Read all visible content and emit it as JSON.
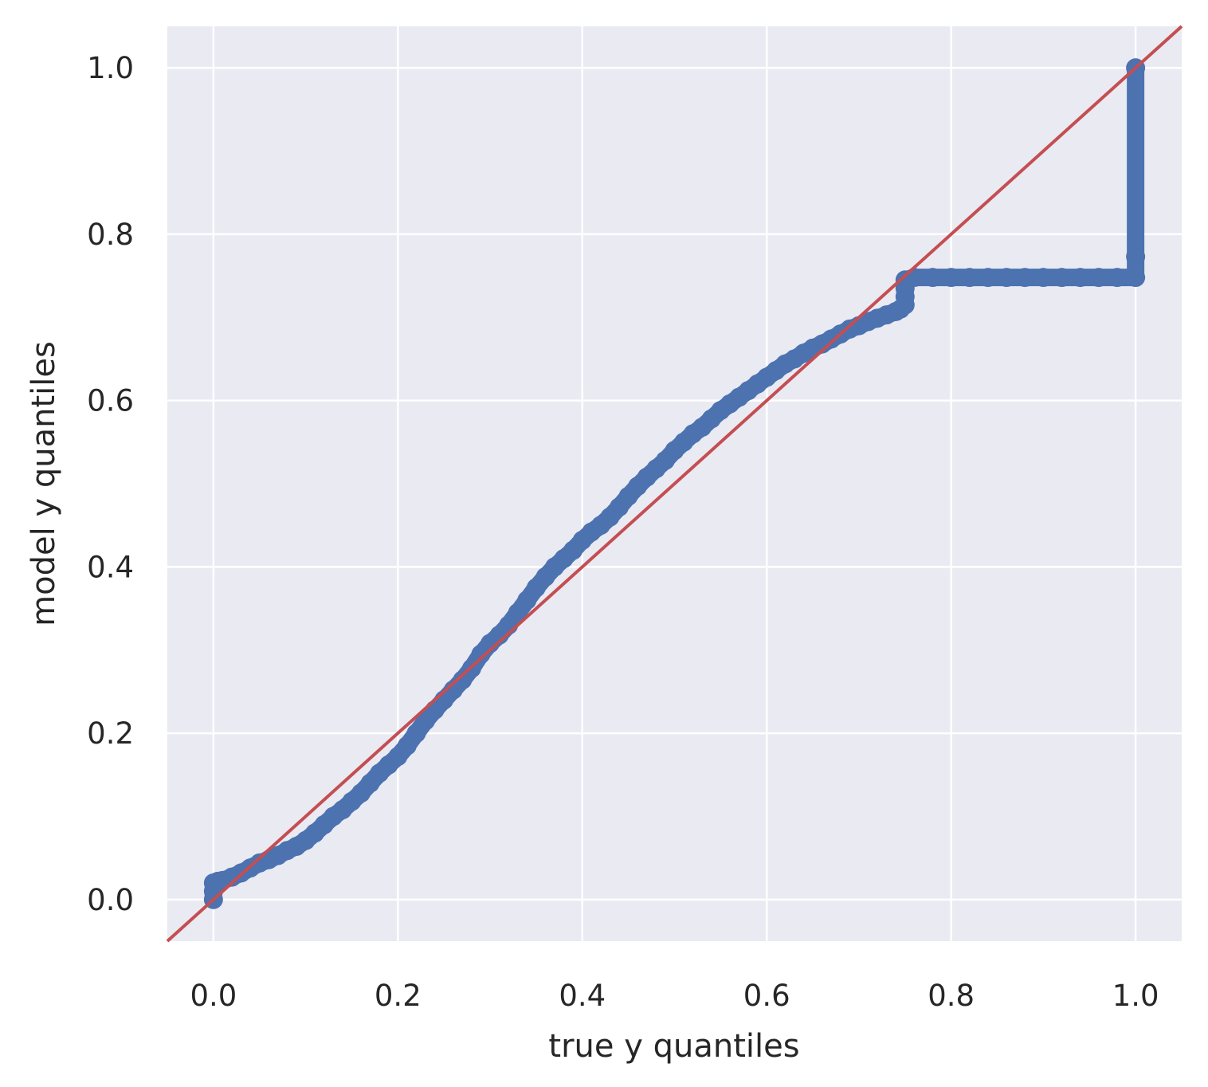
{
  "chart_data": {
    "type": "scatter",
    "title": "",
    "xlabel": "true y quantiles",
    "ylabel": "model y quantiles",
    "xlim": [
      -0.05,
      1.05
    ],
    "ylim": [
      -0.05,
      1.05
    ],
    "xticks": [
      0.0,
      0.2,
      0.4,
      0.6,
      0.8,
      1.0
    ],
    "yticks": [
      0.0,
      0.2,
      0.4,
      0.6,
      0.8,
      1.0
    ],
    "xtick_labels": [
      "0.0",
      "0.2",
      "0.4",
      "0.6",
      "0.8",
      "1.0"
    ],
    "ytick_labels": [
      "0.0",
      "0.2",
      "0.4",
      "0.6",
      "0.8",
      "1.0"
    ],
    "grid": true,
    "series": [
      {
        "kind": "scatter",
        "color": "#4c72b0",
        "points": [
          [
            0.0,
            0.0
          ],
          [
            0.0,
            0.01
          ],
          [
            0.0,
            0.02
          ],
          [
            0.005,
            0.022
          ],
          [
            0.01,
            0.023
          ],
          [
            0.02,
            0.027
          ],
          [
            0.03,
            0.032
          ],
          [
            0.04,
            0.038
          ],
          [
            0.05,
            0.044
          ],
          [
            0.06,
            0.048
          ],
          [
            0.07,
            0.053
          ],
          [
            0.08,
            0.059
          ],
          [
            0.09,
            0.064
          ],
          [
            0.1,
            0.071
          ],
          [
            0.11,
            0.08
          ],
          [
            0.12,
            0.09
          ],
          [
            0.13,
            0.1
          ],
          [
            0.14,
            0.108
          ],
          [
            0.15,
            0.118
          ],
          [
            0.16,
            0.128
          ],
          [
            0.17,
            0.14
          ],
          [
            0.18,
            0.152
          ],
          [
            0.19,
            0.162
          ],
          [
            0.2,
            0.172
          ],
          [
            0.21,
            0.185
          ],
          [
            0.22,
            0.2
          ],
          [
            0.23,
            0.215
          ],
          [
            0.24,
            0.228
          ],
          [
            0.25,
            0.24
          ],
          [
            0.26,
            0.252
          ],
          [
            0.27,
            0.264
          ],
          [
            0.28,
            0.278
          ],
          [
            0.29,
            0.295
          ],
          [
            0.3,
            0.308
          ],
          [
            0.31,
            0.318
          ],
          [
            0.32,
            0.33
          ],
          [
            0.33,
            0.345
          ],
          [
            0.34,
            0.36
          ],
          [
            0.35,
            0.375
          ],
          [
            0.36,
            0.388
          ],
          [
            0.37,
            0.4
          ],
          [
            0.38,
            0.41
          ],
          [
            0.39,
            0.42
          ],
          [
            0.4,
            0.432
          ],
          [
            0.41,
            0.442
          ],
          [
            0.42,
            0.45
          ],
          [
            0.43,
            0.46
          ],
          [
            0.44,
            0.472
          ],
          [
            0.45,
            0.485
          ],
          [
            0.46,
            0.497
          ],
          [
            0.47,
            0.508
          ],
          [
            0.48,
            0.518
          ],
          [
            0.49,
            0.528
          ],
          [
            0.5,
            0.54
          ],
          [
            0.51,
            0.55
          ],
          [
            0.52,
            0.56
          ],
          [
            0.53,
            0.568
          ],
          [
            0.54,
            0.578
          ],
          [
            0.55,
            0.588
          ],
          [
            0.56,
            0.596
          ],
          [
            0.57,
            0.604
          ],
          [
            0.58,
            0.612
          ],
          [
            0.59,
            0.62
          ],
          [
            0.6,
            0.628
          ],
          [
            0.61,
            0.636
          ],
          [
            0.62,
            0.644
          ],
          [
            0.63,
            0.65
          ],
          [
            0.64,
            0.657
          ],
          [
            0.65,
            0.663
          ],
          [
            0.66,
            0.668
          ],
          [
            0.67,
            0.674
          ],
          [
            0.68,
            0.68
          ],
          [
            0.69,
            0.686
          ],
          [
            0.7,
            0.69
          ],
          [
            0.71,
            0.695
          ],
          [
            0.72,
            0.699
          ],
          [
            0.73,
            0.703
          ],
          [
            0.74,
            0.707
          ],
          [
            0.745,
            0.71
          ],
          [
            0.75,
            0.715
          ],
          [
            0.75,
            0.725
          ],
          [
            0.75,
            0.735
          ],
          [
            0.75,
            0.745
          ],
          [
            0.76,
            0.748
          ],
          [
            0.78,
            0.748
          ],
          [
            0.8,
            0.748
          ],
          [
            0.82,
            0.748
          ],
          [
            0.84,
            0.748
          ],
          [
            0.86,
            0.748
          ],
          [
            0.88,
            0.748
          ],
          [
            0.9,
            0.748
          ],
          [
            0.92,
            0.748
          ],
          [
            0.94,
            0.748
          ],
          [
            0.96,
            0.748
          ],
          [
            0.98,
            0.748
          ],
          [
            1.0,
            0.748
          ],
          [
            1.0,
            0.773
          ],
          [
            1.0,
            1.0
          ]
        ]
      },
      {
        "kind": "line",
        "color": "#c44e52",
        "points": [
          [
            -0.05,
            -0.05
          ],
          [
            1.05,
            1.05
          ]
        ]
      }
    ]
  }
}
